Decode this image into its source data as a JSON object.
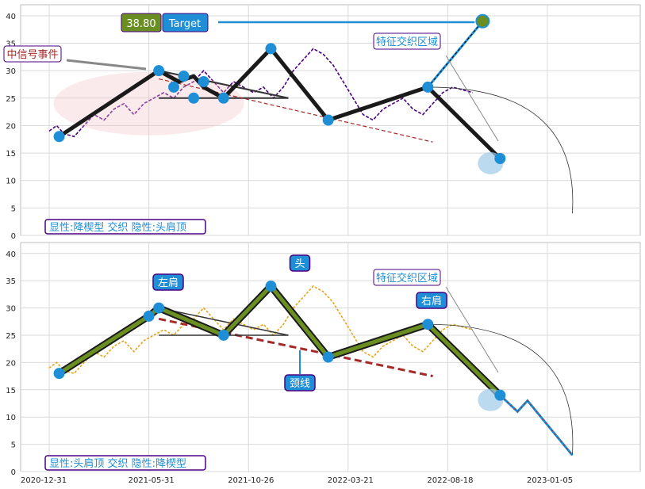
{
  "chart_data": [
    {
      "type": "line",
      "panel": "top",
      "y_ticks": [
        "0",
        "5",
        "10",
        "15",
        "20",
        "25",
        "30",
        "35",
        "40"
      ],
      "ylim": [
        0,
        42
      ],
      "grid": true,
      "price_series_color": "#4b0082",
      "price": [
        [
          0,
          19
        ],
        [
          3,
          20
        ],
        [
          6,
          18.5
        ],
        [
          10,
          18
        ],
        [
          14,
          20
        ],
        [
          18,
          22
        ],
        [
          22,
          21
        ],
        [
          26,
          23
        ],
        [
          30,
          24
        ],
        [
          34,
          22
        ],
        [
          38,
          24
        ],
        [
          42,
          25
        ],
        [
          46,
          26
        ],
        [
          50,
          25
        ],
        [
          54,
          27
        ],
        [
          58,
          28
        ],
        [
          62,
          30
        ],
        [
          66,
          28
        ],
        [
          70,
          26
        ],
        [
          74,
          28
        ],
        [
          78,
          27
        ],
        [
          82,
          26
        ],
        [
          86,
          27
        ],
        [
          90,
          25
        ],
        [
          94,
          27
        ],
        [
          98,
          30
        ],
        [
          102,
          32
        ],
        [
          106,
          34
        ],
        [
          110,
          33
        ],
        [
          114,
          31
        ],
        [
          118,
          28
        ],
        [
          122,
          25
        ],
        [
          126,
          22
        ],
        [
          130,
          21
        ],
        [
          134,
          23
        ],
        [
          138,
          24
        ],
        [
          142,
          25
        ],
        [
          146,
          23
        ],
        [
          150,
          22
        ],
        [
          154,
          24
        ],
        [
          158,
          26
        ],
        [
          162,
          27
        ],
        [
          166,
          26.5
        ],
        [
          170,
          26
        ]
      ],
      "pattern_line": [
        [
          4,
          18
        ],
        [
          44,
          30
        ],
        [
          52,
          28
        ],
        [
          58,
          29
        ],
        [
          62,
          27
        ],
        [
          70,
          25
        ],
        [
          89,
          34
        ],
        [
          112,
          21
        ],
        [
          152,
          27
        ],
        [
          181,
          14
        ]
      ],
      "pattern_points": [
        [
          4,
          18
        ],
        [
          44,
          30
        ],
        [
          50,
          27
        ],
        [
          54,
          29
        ],
        [
          58,
          25
        ],
        [
          62,
          28
        ],
        [
          70,
          25
        ],
        [
          89,
          34
        ],
        [
          112,
          21
        ],
        [
          152,
          27
        ],
        [
          181,
          14
        ]
      ],
      "wedge_lines": [
        [
          [
            44,
            30
          ],
          [
            96,
            25
          ]
        ],
        [
          [
            44,
            25
          ],
          [
            96,
            25
          ]
        ]
      ],
      "trend_line": [
        [
          44,
          28.5
        ],
        [
          154,
          17
        ]
      ],
      "target_line": [
        [
          152,
          27
        ],
        [
          174,
          39
        ]
      ],
      "target_point": [
        174,
        39
      ],
      "arrow_curve": [
        [
          152,
          27
        ],
        [
          210,
          4
        ]
      ],
      "annotations": {
        "target_value": "38.80",
        "target_label": "Target",
        "event_label": "中信号事件",
        "zone_label": "特征交织区域",
        "footer": "显性:降楔型 交织 隐性:头肩顶"
      }
    },
    {
      "type": "line",
      "panel": "bottom",
      "x_tick_labels": [
        "2020-12-31",
        "2021-05-31",
        "2021-10-26",
        "2022-03-21",
        "2022-08-18",
        "2023-01-05"
      ],
      "y_ticks": [
        "0",
        "5",
        "10",
        "15",
        "20",
        "25",
        "30",
        "35",
        "40"
      ],
      "ylim": [
        0,
        42
      ],
      "grid": true,
      "price_series_color": "#e8a317",
      "price": [
        [
          0,
          19
        ],
        [
          3,
          20
        ],
        [
          6,
          18.5
        ],
        [
          10,
          18
        ],
        [
          14,
          20
        ],
        [
          18,
          22
        ],
        [
          22,
          21
        ],
        [
          26,
          23
        ],
        [
          30,
          24
        ],
        [
          34,
          22
        ],
        [
          38,
          24
        ],
        [
          42,
          25
        ],
        [
          46,
          26
        ],
        [
          50,
          25
        ],
        [
          54,
          27
        ],
        [
          58,
          28
        ],
        [
          62,
          30
        ],
        [
          66,
          28
        ],
        [
          70,
          26
        ],
        [
          74,
          28
        ],
        [
          78,
          27
        ],
        [
          82,
          26
        ],
        [
          86,
          27
        ],
        [
          90,
          25
        ],
        [
          94,
          27
        ],
        [
          98,
          30
        ],
        [
          102,
          32
        ],
        [
          106,
          34
        ],
        [
          110,
          33
        ],
        [
          114,
          31
        ],
        [
          118,
          28
        ],
        [
          122,
          25
        ],
        [
          126,
          22
        ],
        [
          130,
          21
        ],
        [
          134,
          23
        ],
        [
          138,
          24
        ],
        [
          142,
          25
        ],
        [
          146,
          23
        ],
        [
          150,
          22
        ],
        [
          154,
          24
        ],
        [
          158,
          26
        ],
        [
          162,
          27
        ],
        [
          166,
          26.5
        ],
        [
          170,
          26
        ]
      ],
      "pattern_line": [
        [
          4,
          18
        ],
        [
          40,
          28.5
        ],
        [
          44,
          30
        ],
        [
          70,
          25
        ],
        [
          89,
          34
        ],
        [
          112,
          21
        ],
        [
          152,
          27
        ],
        [
          181,
          14
        ]
      ],
      "pattern_points": [
        [
          4,
          18
        ],
        [
          40,
          28.5
        ],
        [
          44,
          30
        ],
        [
          70,
          25
        ],
        [
          89,
          34
        ],
        [
          112,
          21
        ],
        [
          152,
          27
        ],
        [
          181,
          14
        ]
      ],
      "neckline": [
        [
          44,
          28
        ],
        [
          154,
          17.5
        ]
      ],
      "projection": [
        [
          181,
          14
        ],
        [
          188,
          11
        ],
        [
          192,
          13
        ],
        [
          210,
          3
        ]
      ],
      "arrow_curve": [
        [
          152,
          27
        ],
        [
          210,
          3
        ]
      ],
      "annotations": {
        "left_shoulder": "左肩",
        "head": "头",
        "right_shoulder": "右肩",
        "neck": "颈线",
        "zone_label": "特征交织区域",
        "footer": "显性:头肩顶 交织 隐性:降楔型"
      }
    }
  ],
  "colors": {
    "pattern": "#1a1a1a",
    "marker": "#1e8fd6",
    "trend": "#a52a2a",
    "highlight": "#6b8e23",
    "label_bg": "#1e8fd6",
    "label_border": "#4b0082"
  }
}
